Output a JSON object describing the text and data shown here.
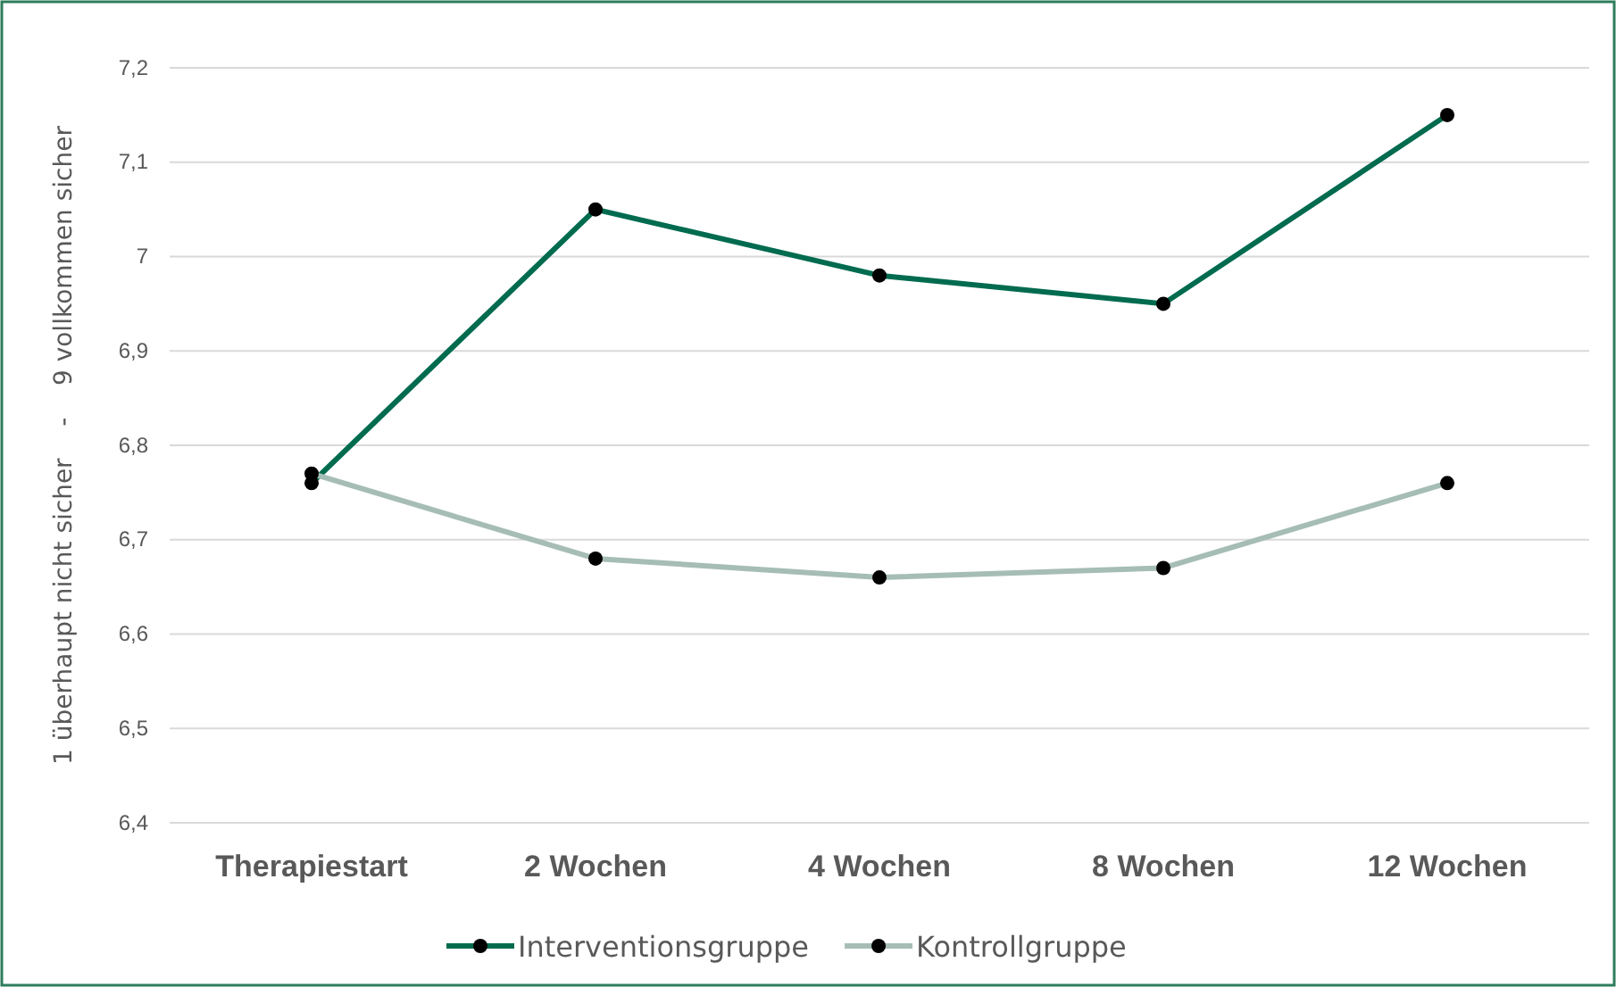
{
  "chart_data": {
    "type": "line",
    "ylabel": "1 überhaupt nicht sicher    -    9 vollkommen sicher",
    "categories": [
      "Therapiestart",
      "2 Wochen",
      "4 Wochen",
      "8 Wochen",
      "12 Wochen"
    ],
    "series": [
      {
        "name": "Interventionsgruppe",
        "color": "#006b4f",
        "values": [
          6.76,
          7.05,
          6.98,
          6.95,
          7.15
        ]
      },
      {
        "name": "Kontrollgruppe",
        "color": "#a6bdb5",
        "values": [
          6.77,
          6.68,
          6.66,
          6.67,
          6.76
        ]
      }
    ],
    "ylim": [
      6.4,
      7.2
    ],
    "yticks": [
      {
        "value": 6.4,
        "label": "6,4"
      },
      {
        "value": 6.5,
        "label": "6,5"
      },
      {
        "value": 6.6,
        "label": "6,6"
      },
      {
        "value": 6.7,
        "label": "6,7"
      },
      {
        "value": 6.8,
        "label": "6,8"
      },
      {
        "value": 6.9,
        "label": "6,9"
      },
      {
        "value": 7,
        "label": "7"
      },
      {
        "value": 7.1,
        "label": "7,1"
      },
      {
        "value": 7.2,
        "label": "7,2"
      }
    ],
    "grid": "y",
    "legend": "bottom",
    "marker": "circle",
    "line_style": "solid"
  }
}
